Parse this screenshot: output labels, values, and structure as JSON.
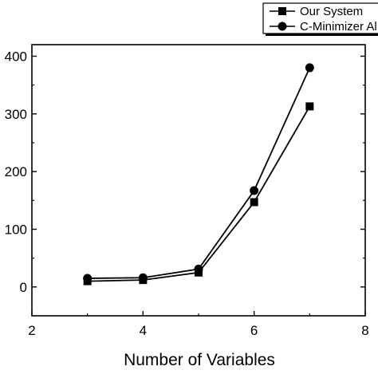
{
  "chart_data": {
    "type": "line",
    "title": "",
    "xlabel": "Number of Variables",
    "ylabel": "",
    "xlim": [
      2,
      8
    ],
    "ylim": [
      -50,
      420
    ],
    "x_ticks": [
      2,
      4,
      6,
      8
    ],
    "y_ticks": [
      0,
      100,
      200,
      300,
      400
    ],
    "x_tick_labels": [
      "2",
      "4",
      "6",
      "8"
    ],
    "y_tick_labels": [
      "0",
      "100",
      "200",
      "300",
      "400"
    ],
    "grid": false,
    "legend_position": "top-right",
    "series": [
      {
        "name": "Our System",
        "marker": "square",
        "color": "#000000",
        "x": [
          3,
          4,
          5,
          6,
          7
        ],
        "y": [
          10,
          12,
          25,
          147,
          313
        ]
      },
      {
        "name": "C-Minimizer Al",
        "marker": "circle",
        "color": "#000000",
        "x": [
          3,
          4,
          5,
          6,
          7
        ],
        "y": [
          15,
          16,
          31,
          167,
          380
        ]
      }
    ]
  }
}
